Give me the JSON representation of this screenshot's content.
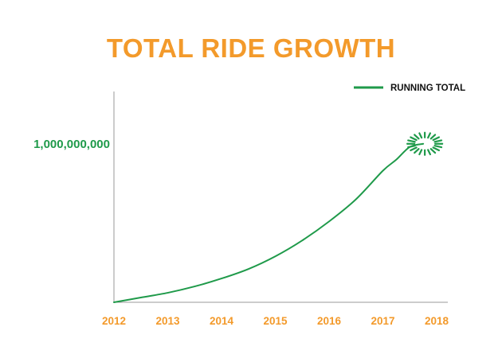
{
  "chart_data": {
    "type": "line",
    "title": "TOTAL RIDE GROWTH",
    "xlabel": "",
    "ylabel": "",
    "x_ticks": [
      "2012",
      "2013",
      "2014",
      "2015",
      "2016",
      "2017",
      "2018"
    ],
    "y_ticks": [
      {
        "value": 1000000000,
        "label": "1,000,000,000"
      }
    ],
    "xlim": [
      2012,
      2018
    ],
    "ylim": [
      0,
      1330000000
    ],
    "legend": {
      "placement": "top-right",
      "entries": [
        "RUNNING TOTAL"
      ]
    },
    "grid": false,
    "highlight": {
      "x": 2017.75,
      "y": 1000000000,
      "kind": "burst"
    },
    "series": [
      {
        "name": "RUNNING TOTAL",
        "color": "#1f9a4a",
        "x": [
          2012,
          2012.5,
          2013,
          2013.5,
          2014,
          2014.5,
          2015,
          2015.5,
          2016,
          2016.5,
          2017,
          2017.25,
          2017.5,
          2017.75
        ],
        "y": [
          0,
          30000000,
          60000000,
          100000000,
          150000000,
          210000000,
          290000000,
          390000000,
          510000000,
          650000000,
          830000000,
          900000000,
          980000000,
          1000000000
        ]
      }
    ]
  },
  "colors": {
    "title": "#f39a2b",
    "line": "#1f9a4a",
    "axis": "#999999",
    "tick_text": "#f39a2b",
    "ytick_text": "#1f9a4a"
  }
}
